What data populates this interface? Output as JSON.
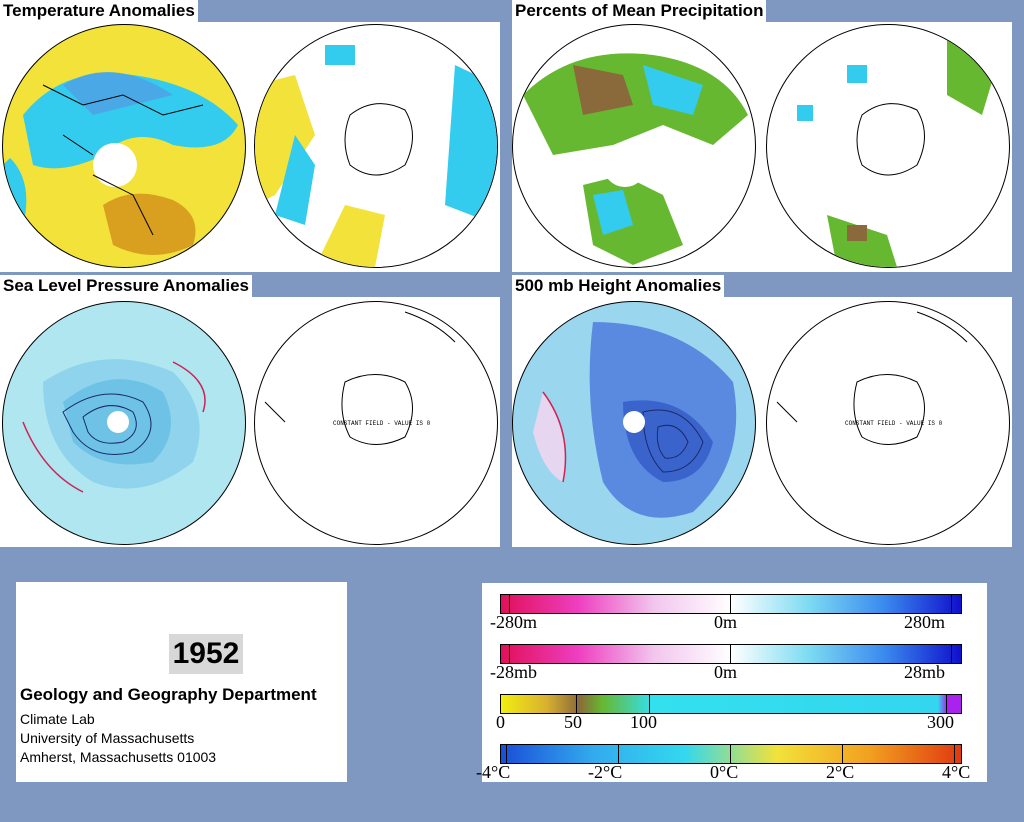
{
  "panels": {
    "temp": {
      "title": "Temperature Anomalies"
    },
    "precip": {
      "title": "Percents of Mean Precipitation"
    },
    "slp": {
      "title": "Sea Level Pressure Anomalies"
    },
    "height": {
      "title": "500 mb Height Anomalies"
    }
  },
  "constant_field_text": "CONSTANT FIELD - VALUE IS 0",
  "credits": {
    "year": "1952",
    "department": "Geology and Geography Department",
    "lab": "Climate Lab",
    "university": "University of Massachusetts",
    "address": "Amherst, Massachusetts 01003"
  },
  "legends": {
    "height": {
      "min": "-280m",
      "mid": "0m",
      "max": "280m"
    },
    "pressure": {
      "min": "-28mb",
      "mid": "0m",
      "max": "28mb"
    },
    "precip": {
      "l0": "0",
      "l1": "50",
      "l2": "100",
      "l3": "300"
    },
    "temp": {
      "l0": "-4°C",
      "l1": "-2°C",
      "l2": "0°C",
      "l3": "2°C",
      "l4": "4°C"
    }
  },
  "colors": {
    "background": "#7f98c1",
    "cold": "#33ccee",
    "warm": "#f2e23a",
    "dry": "#7a9a2a",
    "contour_neg": "#cc2255",
    "contour_pos": "#1a2a6a"
  }
}
